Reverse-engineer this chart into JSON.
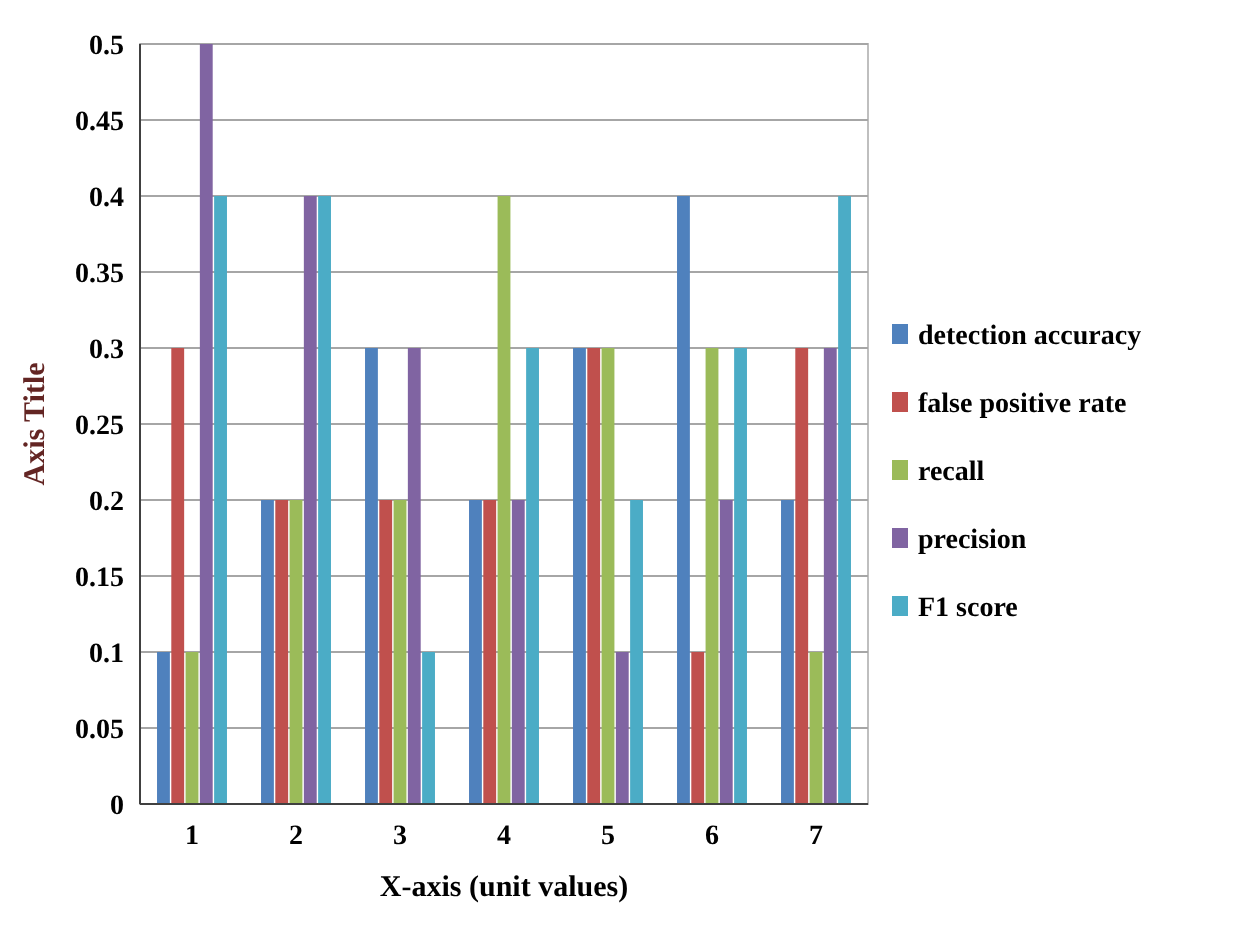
{
  "chart_data": {
    "type": "bar",
    "xlabel": "X-axis (unit values)",
    "ylabel": "Axis Title",
    "categories": [
      "1",
      "2",
      "3",
      "4",
      "5",
      "6",
      "7"
    ],
    "series": [
      {
        "name": "detection accuracy",
        "color": "#4f81bd",
        "values": [
          0.1,
          0.2,
          0.3,
          0.2,
          0.3,
          0.4,
          0.2
        ]
      },
      {
        "name": "false positive rate",
        "color": "#c0504d",
        "values": [
          0.3,
          0.2,
          0.2,
          0.2,
          0.3,
          0.1,
          0.3
        ]
      },
      {
        "name": "recall",
        "color": "#9bbb59",
        "values": [
          0.1,
          0.2,
          0.2,
          0.4,
          0.3,
          0.3,
          0.1
        ]
      },
      {
        "name": "precision",
        "color": "#8064a2",
        "values": [
          0.5,
          0.4,
          0.3,
          0.2,
          0.1,
          0.2,
          0.3
        ]
      },
      {
        "name": "F1 score",
        "color": "#4bacc6",
        "values": [
          0.4,
          0.4,
          0.1,
          0.3,
          0.2,
          0.3,
          0.4
        ]
      }
    ],
    "ylim": [
      0,
      0.5
    ],
    "yticks": [
      0,
      0.05,
      0.1,
      0.15,
      0.2,
      0.25,
      0.3,
      0.35,
      0.4,
      0.45,
      0.5
    ],
    "grid": "y",
    "legend": "right"
  }
}
